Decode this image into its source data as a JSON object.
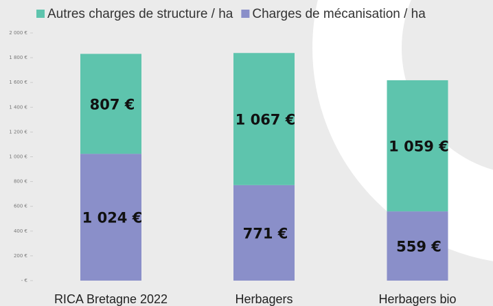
{
  "chart_data": {
    "type": "stacked_bar",
    "categories": [
      "RICA Bretagne 2022",
      "Herbagers",
      "Herbagers bio"
    ],
    "series": [
      {
        "name": "Autres charges de structure / ha",
        "color": "#5ec4ad",
        "values": [
          807,
          1067,
          1059
        ],
        "value_labels": [
          "807 €",
          "1 067 €",
          "1 059 €"
        ]
      },
      {
        "name": "Charges de mécanisation / ha",
        "color": "#8a8fc9",
        "values": [
          1024,
          771,
          559
        ],
        "value_labels": [
          "1 024 €",
          "771 €",
          "559 €"
        ]
      }
    ],
    "ylim": [
      0,
      2000
    ],
    "yticks": [
      {
        "value": 0,
        "label": "- €"
      },
      {
        "value": 200,
        "label": "200 €"
      },
      {
        "value": 400,
        "label": "400 €"
      },
      {
        "value": 600,
        "label": "600 €"
      },
      {
        "value": 800,
        "label": "800 €"
      },
      {
        "value": 1000,
        "label": "1 000 €"
      },
      {
        "value": 1200,
        "label": "1 200 €"
      },
      {
        "value": 1400,
        "label": "1 400 €"
      },
      {
        "value": 1600,
        "label": "1 600 €"
      },
      {
        "value": 1800,
        "label": "1 800 €"
      },
      {
        "value": 2000,
        "label": "2 000 €"
      }
    ],
    "legend": "top"
  }
}
